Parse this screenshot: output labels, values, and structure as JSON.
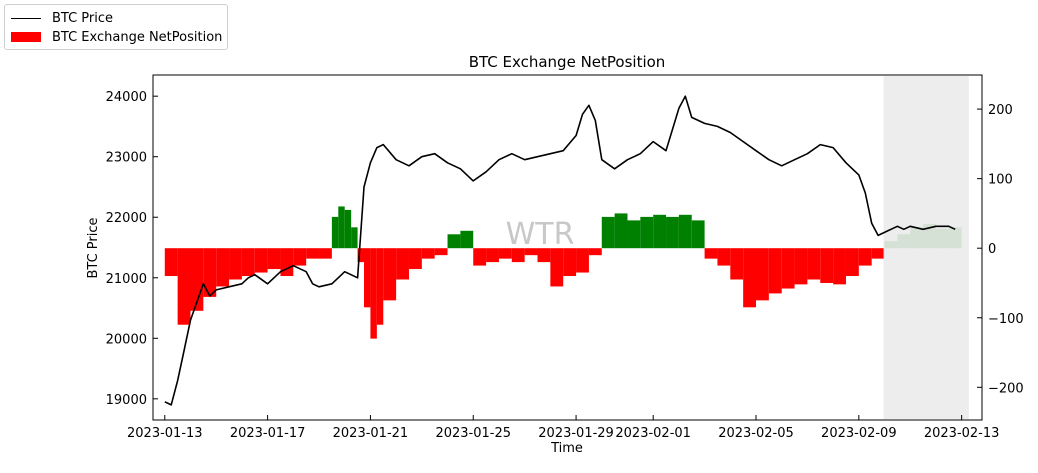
{
  "chart_data": {
    "type": "bar+line",
    "title": "BTC Exchange NetPosition",
    "xlabel": "Time",
    "ylabel_left": "BTC Price",
    "ylabel_right": "",
    "watermark": "WTR",
    "legend": {
      "placement": "top-left (outside plot)",
      "entries": [
        "BTC Price",
        "BTC Exchange NetPosition"
      ]
    },
    "x_ticks": [
      "2023-01-13",
      "2023-01-17",
      "2023-01-21",
      "2023-01-25",
      "2023-01-29",
      "2023-02-01",
      "2023-02-05",
      "2023-02-09",
      "2023-02-13"
    ],
    "x_range": [
      "2023-01-12T13:00",
      "2023-02-13T19:00"
    ],
    "y_left_ticks": [
      19000,
      20000,
      21000,
      22000,
      23000,
      24000
    ],
    "y_left_range": [
      18650,
      24350
    ],
    "y_right_ticks": [
      -200,
      -100,
      0,
      100,
      200
    ],
    "y_right_range": [
      -247,
      249
    ],
    "grid": false,
    "colors": {
      "positive": "#008000",
      "negative": "#ff0000",
      "price": "#000000",
      "masked": "#ebebeb"
    },
    "price_series": {
      "name": "BTC Price",
      "x": [
        "2023-01-13T00:00",
        "2023-01-13T06:00",
        "2023-01-13T12:00",
        "2023-01-13T18:00",
        "2023-01-14T00:00",
        "2023-01-14T06:00",
        "2023-01-14T12:00",
        "2023-01-14T18:00",
        "2023-01-15T00:00",
        "2023-01-15T12:00",
        "2023-01-16T00:00",
        "2023-01-16T06:00",
        "2023-01-16T12:00",
        "2023-01-17T00:00",
        "2023-01-17T12:00",
        "2023-01-18T00:00",
        "2023-01-18T12:00",
        "2023-01-18T18:00",
        "2023-01-19T00:00",
        "2023-01-19T12:00",
        "2023-01-20T00:00",
        "2023-01-20T12:00",
        "2023-01-20T18:00",
        "2023-01-21T00:00",
        "2023-01-21T06:00",
        "2023-01-21T12:00",
        "2023-01-22T00:00",
        "2023-01-22T12:00",
        "2023-01-23T00:00",
        "2023-01-23T12:00",
        "2023-01-24T00:00",
        "2023-01-24T12:00",
        "2023-01-25T00:00",
        "2023-01-25T12:00",
        "2023-01-26T00:00",
        "2023-01-26T12:00",
        "2023-01-27T00:00",
        "2023-01-27T12:00",
        "2023-01-28T00:00",
        "2023-01-28T12:00",
        "2023-01-29T00:00",
        "2023-01-29T06:00",
        "2023-01-29T12:00",
        "2023-01-29T18:00",
        "2023-01-30T00:00",
        "2023-01-30T12:00",
        "2023-01-31T00:00",
        "2023-01-31T12:00",
        "2023-02-01T00:00",
        "2023-02-01T12:00",
        "2023-02-02T00:00",
        "2023-02-02T06:00",
        "2023-02-02T12:00",
        "2023-02-03T00:00",
        "2023-02-03T12:00",
        "2023-02-04T00:00",
        "2023-02-04T12:00",
        "2023-02-05T00:00",
        "2023-02-05T12:00",
        "2023-02-06T00:00",
        "2023-02-06T12:00",
        "2023-02-07T00:00",
        "2023-02-07T12:00",
        "2023-02-08T00:00",
        "2023-02-08T12:00",
        "2023-02-09T00:00",
        "2023-02-09T06:00",
        "2023-02-09T12:00",
        "2023-02-09T18:00",
        "2023-02-10T00:00",
        "2023-02-10T06:00",
        "2023-02-10T12:00",
        "2023-02-10T18:00",
        "2023-02-11T00:00",
        "2023-02-11T12:00",
        "2023-02-12T00:00",
        "2023-02-12T12:00",
        "2023-02-12T18:00"
      ],
      "values": [
        18950,
        18900,
        19300,
        19800,
        20300,
        20600,
        20900,
        20700,
        20800,
        20850,
        20900,
        21000,
        21050,
        20900,
        21100,
        21200,
        21100,
        20900,
        20850,
        20900,
        21100,
        21000,
        22500,
        22900,
        23150,
        23200,
        22950,
        22850,
        23000,
        23050,
        22900,
        22800,
        22600,
        22750,
        22950,
        23050,
        22950,
        23000,
        23050,
        23100,
        23350,
        23700,
        23850,
        23600,
        22950,
        22800,
        22950,
        23050,
        23250,
        23100,
        23800,
        24000,
        23650,
        23550,
        23500,
        23400,
        23250,
        23100,
        22950,
        22850,
        22950,
        23050,
        23200,
        23150,
        22900,
        22700,
        22400,
        21900,
        21700,
        21750,
        21800,
        21850,
        21800,
        21850,
        21800,
        21850,
        21850,
        21800
      ]
    },
    "netposition_series": {
      "name": "BTC Exchange NetPosition",
      "x": [
        "2023-01-13T00:00",
        "2023-01-13T12:00",
        "2023-01-14T00:00",
        "2023-01-14T12:00",
        "2023-01-15T00:00",
        "2023-01-15T12:00",
        "2023-01-16T00:00",
        "2023-01-16T12:00",
        "2023-01-17T00:00",
        "2023-01-17T12:00",
        "2023-01-18T00:00",
        "2023-01-18T12:00",
        "2023-01-19T00:00",
        "2023-01-19T12:00",
        "2023-01-19T18:00",
        "2023-01-20T00:00",
        "2023-01-20T06:00",
        "2023-01-20T12:00",
        "2023-01-20T18:00",
        "2023-01-21T00:00",
        "2023-01-21T06:00",
        "2023-01-21T12:00",
        "2023-01-22T00:00",
        "2023-01-22T12:00",
        "2023-01-23T00:00",
        "2023-01-23T12:00",
        "2023-01-24T00:00",
        "2023-01-24T12:00",
        "2023-01-25T00:00",
        "2023-01-25T12:00",
        "2023-01-26T00:00",
        "2023-01-26T12:00",
        "2023-01-27T00:00",
        "2023-01-27T12:00",
        "2023-01-28T00:00",
        "2023-01-28T12:00",
        "2023-01-29T00:00",
        "2023-01-29T12:00",
        "2023-01-30T00:00",
        "2023-01-30T12:00",
        "2023-01-31T00:00",
        "2023-01-31T12:00",
        "2023-02-01T00:00",
        "2023-02-01T12:00",
        "2023-02-02T00:00",
        "2023-02-02T12:00",
        "2023-02-03T00:00",
        "2023-02-03T12:00",
        "2023-02-04T00:00",
        "2023-02-04T12:00",
        "2023-02-05T00:00",
        "2023-02-05T12:00",
        "2023-02-06T00:00",
        "2023-02-06T12:00",
        "2023-02-07T00:00",
        "2023-02-07T12:00",
        "2023-02-08T00:00",
        "2023-02-08T12:00",
        "2023-02-09T00:00",
        "2023-02-09T12:00",
        "2023-02-10T00:00",
        "2023-02-10T12:00",
        "2023-02-11T00:00",
        "2023-02-11T12:00",
        "2023-02-12T00:00",
        "2023-02-12T12:00"
      ],
      "values": [
        -40,
        -110,
        -90,
        -70,
        -55,
        -45,
        -40,
        -35,
        -30,
        -40,
        -25,
        -15,
        -15,
        45,
        60,
        55,
        30,
        -20,
        -85,
        -130,
        -110,
        -75,
        -45,
        -30,
        -15,
        -10,
        20,
        25,
        -25,
        -20,
        -15,
        -20,
        -10,
        -20,
        -55,
        -40,
        -35,
        -10,
        45,
        50,
        40,
        45,
        48,
        45,
        48,
        40,
        -15,
        -25,
        -45,
        -85,
        -75,
        -65,
        -58,
        -52,
        -45,
        -50,
        -52,
        -40,
        -25,
        -15,
        10,
        20,
        30,
        35,
        28,
        30
      ]
    }
  }
}
